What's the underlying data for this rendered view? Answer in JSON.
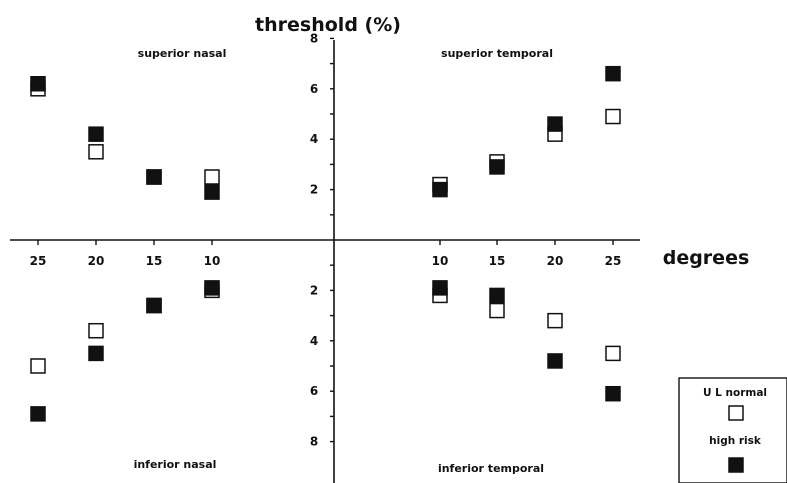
{
  "chart_data": {
    "type": "scatter",
    "title": "threshold (%)",
    "xlabel": "degrees",
    "quadrants": {
      "superior_nasal": "superior nasal",
      "superior_temporal": "superior temporal",
      "inferior_nasal": "inferior nasal",
      "inferior_temporal": "inferior temporal"
    },
    "x_tick_labels": {
      "nasal": [
        "25",
        "20",
        "15",
        "10"
      ],
      "temporal": [
        "10",
        "15",
        "20",
        "25"
      ]
    },
    "y_tick_labels": {
      "superior": [
        "2",
        "4",
        "6",
        "8"
      ],
      "inferior": [
        "2",
        "4",
        "6",
        "8"
      ]
    },
    "ylim": [
      0,
      8
    ],
    "legend": {
      "position": "bottom-right",
      "items": [
        {
          "label": "U L normal",
          "marker": "open-square"
        },
        {
          "label": "high risk",
          "marker": "filled-square"
        }
      ]
    },
    "series": [
      {
        "name": "U L normal",
        "marker": "open-square",
        "points": [
          {
            "region": "superior nasal",
            "x": 25,
            "y": 6.0
          },
          {
            "region": "superior nasal",
            "x": 20,
            "y": 3.5
          },
          {
            "region": "superior nasal",
            "x": 15,
            "y": 2.5
          },
          {
            "region": "superior nasal",
            "x": 10,
            "y": 2.5
          },
          {
            "region": "superior temporal",
            "x": 10,
            "y": 2.2
          },
          {
            "region": "superior temporal",
            "x": 15,
            "y": 3.1
          },
          {
            "region": "superior temporal",
            "x": 20,
            "y": 4.2
          },
          {
            "region": "superior temporal",
            "x": 25,
            "y": 4.9
          },
          {
            "region": "inferior nasal",
            "x": 25,
            "y": 5.0
          },
          {
            "region": "inferior nasal",
            "x": 20,
            "y": 3.6
          },
          {
            "region": "inferior nasal",
            "x": 15,
            "y": 2.6
          },
          {
            "region": "inferior nasal",
            "x": 10,
            "y": 2.0
          },
          {
            "region": "inferior temporal",
            "x": 10,
            "y": 2.2
          },
          {
            "region": "inferior temporal",
            "x": 15,
            "y": 2.8
          },
          {
            "region": "inferior temporal",
            "x": 20,
            "y": 3.2
          },
          {
            "region": "inferior temporal",
            "x": 25,
            "y": 4.5
          }
        ]
      },
      {
        "name": "high risk",
        "marker": "filled-square",
        "points": [
          {
            "region": "superior nasal",
            "x": 25,
            "y": 6.2
          },
          {
            "region": "superior nasal",
            "x": 20,
            "y": 4.2
          },
          {
            "region": "superior nasal",
            "x": 15,
            "y": 2.5
          },
          {
            "region": "superior nasal",
            "x": 10,
            "y": 1.9
          },
          {
            "region": "superior temporal",
            "x": 10,
            "y": 2.0
          },
          {
            "region": "superior temporal",
            "x": 15,
            "y": 2.9
          },
          {
            "region": "superior temporal",
            "x": 20,
            "y": 4.6
          },
          {
            "region": "superior temporal",
            "x": 25,
            "y": 6.6
          },
          {
            "region": "inferior nasal",
            "x": 25,
            "y": 6.9
          },
          {
            "region": "inferior nasal",
            "x": 20,
            "y": 4.5
          },
          {
            "region": "inferior nasal",
            "x": 15,
            "y": 2.6
          },
          {
            "region": "inferior nasal",
            "x": 10,
            "y": 1.9
          },
          {
            "region": "inferior temporal",
            "x": 10,
            "y": 1.9
          },
          {
            "region": "inferior temporal",
            "x": 15,
            "y": 2.2
          },
          {
            "region": "inferior temporal",
            "x": 20,
            "y": 4.8
          },
          {
            "region": "inferior temporal",
            "x": 25,
            "y": 6.1
          }
        ]
      }
    ]
  }
}
